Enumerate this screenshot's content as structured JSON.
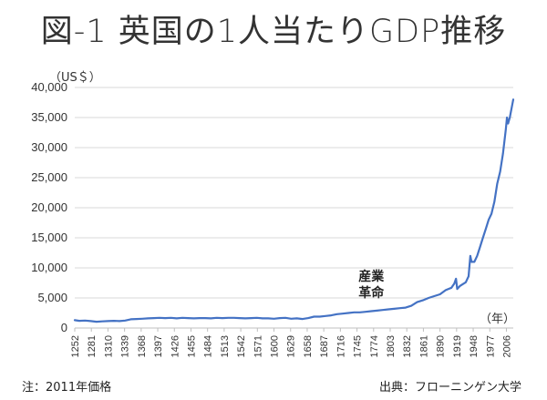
{
  "title": "図-1 英国の1人当たりGDP推移",
  "note": "注：2011年価格",
  "source": "出典：フローニンゲン大学",
  "colors": {
    "line": "#4472C4",
    "grid": "#d9d9d9",
    "axis": "#bfbfbf"
  },
  "chart_data": {
    "type": "line",
    "ylabel": "（US＄）",
    "xlabel": "（年）",
    "ylim": [
      0,
      40000
    ],
    "xlim": [
      1252,
      2018
    ],
    "y_ticks": [
      "0",
      "5,000",
      "10,000",
      "15,000",
      "20,000",
      "25,000",
      "30,000",
      "35,000",
      "40,000"
    ],
    "x_ticks": [
      "1252",
      "1281",
      "1310",
      "1339",
      "1368",
      "1397",
      "1426",
      "1455",
      "1484",
      "1513",
      "1542",
      "1571",
      "1600",
      "1629",
      "1658",
      "1687",
      "1716",
      "1745",
      "1774",
      "1803",
      "1832",
      "1861",
      "1890",
      "1919",
      "1948",
      "1977",
      "2006"
    ],
    "annotation": {
      "line1": "産業",
      "line2": "革命",
      "year": 1770
    },
    "series": [
      {
        "name": "英国の1人当たりGDP",
        "x": [
          1252,
          1260,
          1270,
          1280,
          1290,
          1300,
          1310,
          1320,
          1330,
          1340,
          1350,
          1360,
          1370,
          1380,
          1390,
          1400,
          1410,
          1420,
          1430,
          1440,
          1450,
          1460,
          1470,
          1480,
          1490,
          1500,
          1510,
          1520,
          1530,
          1540,
          1550,
          1560,
          1570,
          1580,
          1590,
          1600,
          1610,
          1620,
          1630,
          1640,
          1650,
          1660,
          1670,
          1680,
          1690,
          1700,
          1710,
          1720,
          1730,
          1740,
          1750,
          1760,
          1770,
          1780,
          1790,
          1800,
          1810,
          1820,
          1830,
          1840,
          1850,
          1860,
          1870,
          1880,
          1890,
          1900,
          1905,
          1910,
          1915,
          1918,
          1920,
          1925,
          1930,
          1935,
          1940,
          1943,
          1945,
          1950,
          1955,
          1960,
          1965,
          1970,
          1975,
          1980,
          1985,
          1990,
          1995,
          2000,
          2005,
          2007,
          2009,
          2012,
          2015,
          2018
        ],
        "values": [
          1300,
          1200,
          1250,
          1150,
          1050,
          1100,
          1150,
          1200,
          1150,
          1250,
          1450,
          1500,
          1550,
          1600,
          1650,
          1700,
          1650,
          1700,
          1600,
          1700,
          1650,
          1600,
          1650,
          1650,
          1600,
          1700,
          1650,
          1700,
          1700,
          1650,
          1600,
          1650,
          1700,
          1600,
          1600,
          1550,
          1650,
          1700,
          1550,
          1600,
          1500,
          1650,
          1900,
          1900,
          2000,
          2100,
          2300,
          2400,
          2500,
          2600,
          2600,
          2700,
          2800,
          2900,
          3000,
          3100,
          3200,
          3300,
          3400,
          3700,
          4300,
          4600,
          5000,
          5300,
          5600,
          6300,
          6500,
          6700,
          7400,
          8200,
          6500,
          7000,
          7300,
          7600,
          8600,
          12000,
          11000,
          11000,
          12000,
          13500,
          15000,
          16500,
          18000,
          19000,
          21000,
          24000,
          26000,
          29000,
          33000,
          35000,
          34000,
          35000,
          36500,
          38000
        ]
      }
    ]
  }
}
